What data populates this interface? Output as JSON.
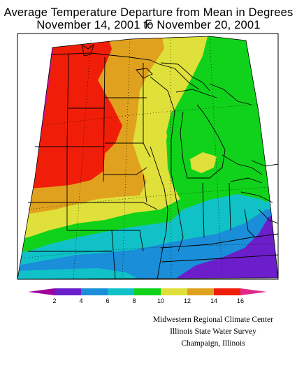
{
  "header": {
    "title_line1": "Average Temperature Departure from Mean in Degrees F",
    "title_line2": "November 14, 2001 to November 20, 2001"
  },
  "legend": {
    "ticks": [
      "2",
      "4",
      "6",
      "8",
      "10",
      "12",
      "14",
      "16"
    ],
    "bins": [
      {
        "label": "< 2",
        "color": "#a0009c"
      },
      {
        "label": "2-4",
        "color": "#6b1ec9"
      },
      {
        "label": "4-6",
        "color": "#1a8ed8"
      },
      {
        "label": "6-8",
        "color": "#10c2c8"
      },
      {
        "label": "8-10",
        "color": "#10d21a"
      },
      {
        "label": "10-12",
        "color": "#e0e03a"
      },
      {
        "label": "12-14",
        "color": "#e0a21e"
      },
      {
        "label": "14-16",
        "color": "#f01e08"
      },
      {
        "label": "> 16",
        "color": "#e02a8a"
      }
    ]
  },
  "credits": {
    "line1": "Midwestern Regional Climate Center",
    "line2": "Illinois State Water Survey",
    "line3": "Champaign, Illinois"
  },
  "colors": {
    "magenta": "#d0108c",
    "red": "#f01e08",
    "orange": "#e0a21e",
    "yellow": "#e0e03a",
    "green": "#10d21a",
    "cyan": "#10c2c8",
    "blue": "#1a8ed8",
    "purple": "#6b1ec9"
  }
}
